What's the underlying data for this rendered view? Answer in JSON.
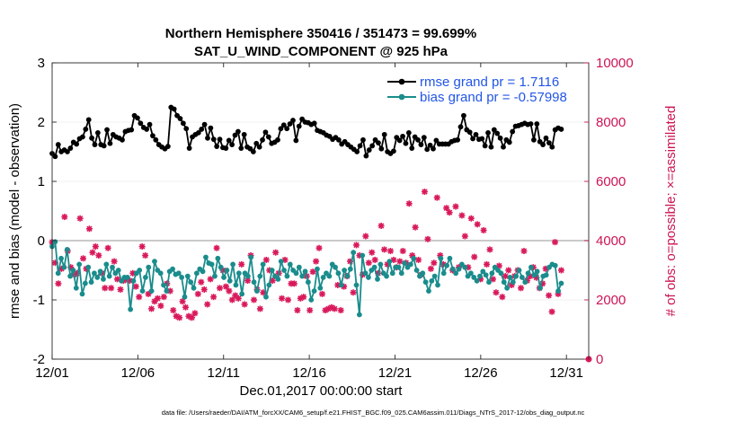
{
  "chart_data": {
    "type": "line",
    "title": "Northern Hemisphere 350416 / 351473 = 99.699%",
    "subtitle": "SAT_U_WIND_COMPONENT @ 925 hPa",
    "xlabel": "Dec.01,2017 00:00:00 start",
    "ylabel": "rmse and bias (model - observation)",
    "ylabel_right": "# of obs: o=possible; ×=assimilated",
    "xlim": [
      0,
      31.3
    ],
    "ylim": [
      -2,
      3
    ],
    "ylim_right": [
      0,
      10000
    ],
    "x_ticks": [
      0,
      5,
      10,
      15,
      20,
      25,
      30
    ],
    "x_tick_labels": [
      "12/01",
      "12/06",
      "12/11",
      "12/16",
      "12/21",
      "12/26",
      "12/31"
    ],
    "y_ticks": [
      -2,
      -1,
      0,
      1,
      2,
      3
    ],
    "y_tick_labels": [
      "-2",
      "-1",
      "0",
      "1",
      "2",
      "3"
    ],
    "y_ticks_right": [
      0,
      2000,
      4000,
      6000,
      8000,
      10000
    ],
    "y_tick_labels_right": [
      "0",
      "2000",
      "4000",
      "6000",
      "8000",
      "10000"
    ],
    "zero_line": 0,
    "legend_position": "top-right",
    "footer": "data file: /Users/raeder/DAI/ATM_forcXX/CAM6_setup/f.e21.FHIST_BGC.f09_025.CAM6assim.011/Diags_NTrS_2017-12/obs_diag_output.nc",
    "series": [
      {
        "name": "rmse grand pr = 1.7116",
        "color": "#000000",
        "values": [
          1.47,
          1.42,
          1.62,
          1.5,
          1.53,
          1.5,
          1.56,
          1.66,
          1.63,
          1.72,
          1.75,
          1.88,
          2.04,
          1.73,
          1.62,
          1.82,
          1.62,
          1.6,
          1.87,
          1.64,
          1.79,
          1.75,
          1.73,
          1.7,
          1.84,
          1.86,
          1.87,
          2.11,
          2.07,
          1.98,
          1.91,
          1.88,
          1.96,
          1.77,
          1.7,
          1.62,
          1.58,
          1.55,
          1.59,
          2.25,
          2.22,
          2.11,
          2.06,
          1.98,
          1.89,
          1.56,
          1.75,
          1.79,
          1.82,
          1.88,
          1.96,
          1.73,
          1.9,
          1.71,
          1.59,
          1.71,
          1.57,
          1.56,
          1.69,
          1.62,
          1.78,
          1.84,
          1.56,
          1.79,
          1.58,
          1.55,
          1.5,
          1.64,
          1.58,
          1.7,
          1.83,
          1.75,
          1.64,
          1.66,
          1.7,
          1.89,
          1.95,
          1.89,
          1.97,
          2.03,
          1.69,
          1.93,
          2.05,
          2.0,
          1.99,
          1.96,
          1.98,
          1.86,
          1.84,
          1.82,
          1.78,
          1.76,
          1.71,
          1.74,
          1.7,
          1.63,
          1.67,
          1.62,
          1.58,
          1.54,
          1.5,
          1.6,
          1.7,
          1.43,
          1.53,
          1.6,
          1.7,
          1.65,
          1.55,
          1.79,
          1.5,
          1.47,
          1.51,
          1.74,
          1.69,
          1.76,
          1.64,
          1.82,
          1.56,
          1.75,
          1.7,
          1.62,
          1.74,
          1.54,
          1.61,
          1.55,
          1.69,
          1.63,
          1.63,
          1.63,
          1.63,
          1.67,
          1.69,
          1.7,
          1.92,
          2.11,
          1.87,
          1.83,
          1.72,
          1.79,
          1.71,
          1.72,
          1.6,
          1.82,
          1.58,
          1.87,
          1.81,
          1.73,
          1.58,
          1.7,
          1.66,
          1.84,
          1.93,
          1.94,
          1.96,
          1.98,
          1.96,
          1.97,
          1.7,
          1.97,
          1.67,
          1.62,
          1.73,
          1.65,
          1.58,
          1.87,
          1.9,
          1.88
        ]
      },
      {
        "name": "bias grand pr = -0.57998",
        "color": "#1a8c8c",
        "values": [
          -0.1,
          -0.02,
          -0.55,
          -0.3,
          -0.45,
          -0.15,
          -0.6,
          -0.5,
          -0.8,
          -0.4,
          -0.9,
          -0.72,
          -0.45,
          -0.7,
          -0.55,
          -0.62,
          -0.52,
          -0.65,
          -0.4,
          -0.6,
          -0.45,
          -0.55,
          -0.5,
          -0.68,
          -0.62,
          -0.62,
          -1.16,
          -0.68,
          -0.55,
          -0.5,
          -0.85,
          -0.62,
          -0.45,
          -0.85,
          -0.35,
          -0.5,
          -0.55,
          -0.75,
          -0.85,
          -0.52,
          -0.48,
          -0.57,
          -0.55,
          -0.62,
          -0.95,
          -0.6,
          -0.7,
          -0.8,
          -0.55,
          -0.48,
          -0.52,
          -0.28,
          -0.38,
          -0.4,
          -0.6,
          -0.3,
          -0.45,
          -0.62,
          -0.5,
          -0.68,
          -0.4,
          -0.75,
          -0.55,
          -0.9,
          -0.55,
          -0.6,
          -0.28,
          -0.7,
          -0.85,
          -0.6,
          -0.4,
          -0.95,
          -0.75,
          -0.5,
          -0.6,
          -0.65,
          -0.35,
          -0.5,
          -0.6,
          -0.4,
          -0.5,
          -0.55,
          -0.45,
          -0.6,
          -0.52,
          -0.7,
          -1.0,
          -0.85,
          -0.48,
          -0.8,
          -0.62,
          -0.55,
          -0.6,
          -0.4,
          -0.45,
          -0.55,
          -0.75,
          -0.5,
          -0.6,
          -0.48,
          -0.2,
          -0.75,
          -1.25,
          -0.25,
          -0.55,
          -0.62,
          -0.5,
          -0.45,
          -0.65,
          -0.4,
          -0.55,
          -0.6,
          -0.35,
          -0.55,
          -0.45,
          -0.45,
          -0.55,
          -0.38,
          -0.45,
          -0.4,
          -0.3,
          -0.5,
          -0.6,
          -0.55,
          -0.7,
          -0.85,
          -0.68,
          -0.6,
          -0.75,
          -0.3,
          -0.55,
          -0.42,
          -0.3,
          -0.48,
          -0.55,
          -0.48,
          -0.4,
          -0.45,
          -0.6,
          -0.55,
          -0.62,
          -0.68,
          -0.6,
          -0.52,
          -0.58,
          -0.7,
          -0.55,
          -0.45,
          -0.5,
          -0.55,
          -0.7,
          -0.8,
          -0.62,
          -0.7,
          -0.6,
          -0.5,
          -0.62,
          -0.7,
          -0.55,
          -0.45,
          -0.58,
          -0.52,
          -0.8,
          -0.6,
          -0.58,
          -0.45,
          -0.4,
          -0.42,
          -0.85,
          -0.72
        ]
      }
    ],
    "obs_possible": [
      3950,
      3250,
      2550,
      3050,
      4800,
      3650,
      3100,
      2850,
      2900,
      4750,
      3400,
      3050,
      4400,
      3600,
      3800,
      3500,
      2900,
      2400,
      3750,
      2400,
      3300,
      2700,
      2350,
      2650,
      2700,
      2650,
      2900,
      2450,
      2100,
      3800,
      3500,
      2200,
      1700,
      1950,
      2050,
      1800,
      2100,
      2550,
      2300,
      1650,
      1450,
      1400,
      1950,
      1750,
      1450,
      1400,
      1550,
      2200,
      2600,
      2350,
      1850,
      2700,
      2100,
      3750,
      2400,
      3000,
      2450,
      2300,
      2000,
      2150,
      2050,
      3200,
      1850,
      2650,
      3500,
      2000,
      2350,
      1700,
      2250,
      3350,
      3000,
      2650,
      3600,
      2900,
      2050,
      3350,
      2000,
      2550,
      2550,
      1650,
      2050,
      2100,
      2800,
      1650,
      2950,
      3300,
      3750,
      2200,
      1650,
      1700,
      1750,
      1700,
      2500,
      1650,
      2450,
      2800,
      3300,
      2250,
      3850,
      3500,
      2850,
      4150,
      3250,
      3600,
      3350,
      2900,
      4500,
      3700,
      3200,
      3650,
      3350,
      3100,
      3300,
      3650,
      3250,
      5250,
      3500,
      4450,
      3350,
      2850,
      5650,
      4050,
      3050,
      3250,
      5450,
      3500,
      3200,
      5100,
      4950,
      3000,
      5150,
      3100,
      4850,
      4150,
      3100,
      4750,
      3450,
      4550,
      2700,
      4350,
      3200,
      3700,
      2700,
      2250,
      3150,
      2100,
      2800,
      3000,
      2500,
      2800,
      3000,
      2400,
      3650,
      2650,
      2800,
      3100,
      2750,
      2400,
      2550,
      3050,
      2150,
      1600,
      3950,
      2200,
      3000
    ]
  }
}
